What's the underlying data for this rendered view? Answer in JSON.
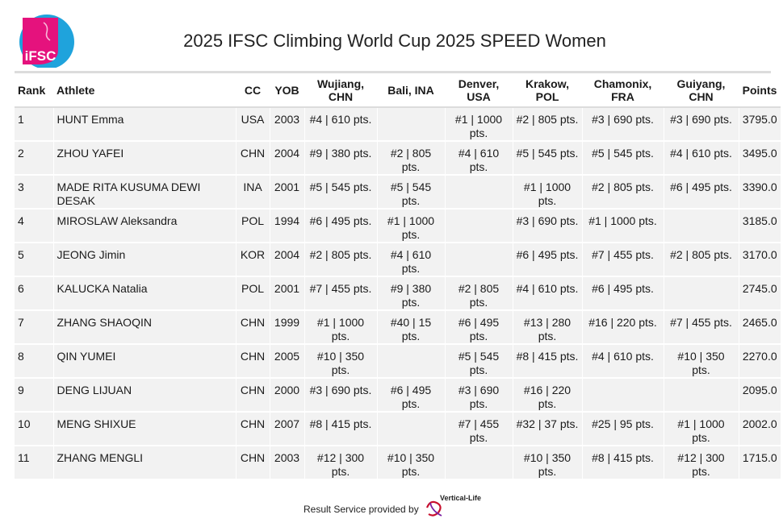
{
  "header": {
    "logo_text": "iFSC",
    "title": "2025 IFSC Climbing World Cup 2025 SPEED Women"
  },
  "table": {
    "columns": [
      "Rank",
      "Athlete",
      "CC",
      "YOB",
      "Wujiang, CHN",
      "Bali, INA",
      "Denver, USA",
      "Krakow, POL",
      "Chamonix, FRA",
      "Guiyang, CHN",
      "Points"
    ],
    "rows": [
      {
        "rank": "1",
        "athlete": "HUNT Emma",
        "cc": "USA",
        "yob": "2003",
        "e1": "#4 | 610 pts.",
        "e2": "",
        "e3": "#1 | 1000 pts.",
        "e4": "#2 | 805 pts.",
        "e5": "#3 | 690 pts.",
        "e6": "#3 | 690 pts.",
        "points": "3795.0"
      },
      {
        "rank": "2",
        "athlete": "ZHOU YAFEI",
        "cc": "CHN",
        "yob": "2004",
        "e1": "#9 | 380 pts.",
        "e2": "#2 | 805 pts.",
        "e3": "#4 | 610 pts.",
        "e4": "#5 | 545 pts.",
        "e5": "#5 | 545 pts.",
        "e6": "#4 | 610 pts.",
        "points": "3495.0"
      },
      {
        "rank": "3",
        "athlete": "MADE RITA KUSUMA DEWI DESAK",
        "cc": "INA",
        "yob": "2001",
        "e1": "#5 | 545 pts.",
        "e2": "#5 | 545 pts.",
        "e3": "",
        "e4": "#1 | 1000 pts.",
        "e5": "#2 | 805 pts.",
        "e6": "#6 | 495 pts.",
        "points": "3390.0"
      },
      {
        "rank": "4",
        "athlete": "MIROSLAW Aleksandra",
        "cc": "POL",
        "yob": "1994",
        "e1": "#6 | 495 pts.",
        "e2": "#1 | 1000 pts.",
        "e3": "",
        "e4": "#3 | 690 pts.",
        "e5": "#1 | 1000 pts.",
        "e6": "",
        "points": "3185.0"
      },
      {
        "rank": "5",
        "athlete": "JEONG Jimin",
        "cc": "KOR",
        "yob": "2004",
        "e1": "#2 | 805 pts.",
        "e2": "#4 | 610 pts.",
        "e3": "",
        "e4": "#6 | 495 pts.",
        "e5": "#7 | 455 pts.",
        "e6": "#2 | 805 pts.",
        "points": "3170.0"
      },
      {
        "rank": "6",
        "athlete": "KALUCKA Natalia",
        "cc": "POL",
        "yob": "2001",
        "e1": "#7 | 455 pts.",
        "e2": "#9 | 380 pts.",
        "e3": "#2 | 805 pts.",
        "e4": "#4 | 610 pts.",
        "e5": "#6 | 495 pts.",
        "e6": "",
        "points": "2745.0"
      },
      {
        "rank": "7",
        "athlete": "ZHANG SHAOQIN",
        "cc": "CHN",
        "yob": "1999",
        "e1": "#1 | 1000 pts.",
        "e2": "#40 | 15 pts.",
        "e3": "#6 | 495 pts.",
        "e4": "#13 | 280 pts.",
        "e5": "#16 | 220 pts.",
        "e6": "#7 | 455 pts.",
        "points": "2465.0"
      },
      {
        "rank": "8",
        "athlete": "QIN YUMEI",
        "cc": "CHN",
        "yob": "2005",
        "e1": "#10 | 350 pts.",
        "e2": "",
        "e3": "#5 | 545 pts.",
        "e4": "#8 | 415 pts.",
        "e5": "#4 | 610 pts.",
        "e6": "#10 | 350 pts.",
        "points": "2270.0"
      },
      {
        "rank": "9",
        "athlete": "DENG LIJUAN",
        "cc": "CHN",
        "yob": "2000",
        "e1": "#3 | 690 pts.",
        "e2": "#6 | 495 pts.",
        "e3": "#3 | 690 pts.",
        "e4": "#16 | 220 pts.",
        "e5": "",
        "e6": "",
        "points": "2095.0"
      },
      {
        "rank": "10",
        "athlete": "MENG SHIXUE",
        "cc": "CHN",
        "yob": "2007",
        "e1": "#8 | 415 pts.",
        "e2": "",
        "e3": "#7 | 455 pts.",
        "e4": "#32 | 37 pts.",
        "e5": "#25 | 95 pts.",
        "e6": "#1 | 1000 pts.",
        "points": "2002.0"
      },
      {
        "rank": "11",
        "athlete": "ZHANG MENGLI",
        "cc": "CHN",
        "yob": "2003",
        "e1": "#12 | 300 pts.",
        "e2": "#10 | 350 pts.",
        "e3": "",
        "e4": "#10 | 350 pts.",
        "e5": "#8 | 415 pts.",
        "e6": "#12 | 300 pts.",
        "points": "1715.0"
      }
    ]
  },
  "footer": {
    "text": "Result Service provided by",
    "provider": "Vertical-Life"
  },
  "colors": {
    "logo_pink": "#e5127d",
    "logo_blue": "#1fa3dc",
    "row_bg": "#f2f2f2",
    "rule": "#dcdcdc",
    "vl_red": "#c8102e"
  }
}
